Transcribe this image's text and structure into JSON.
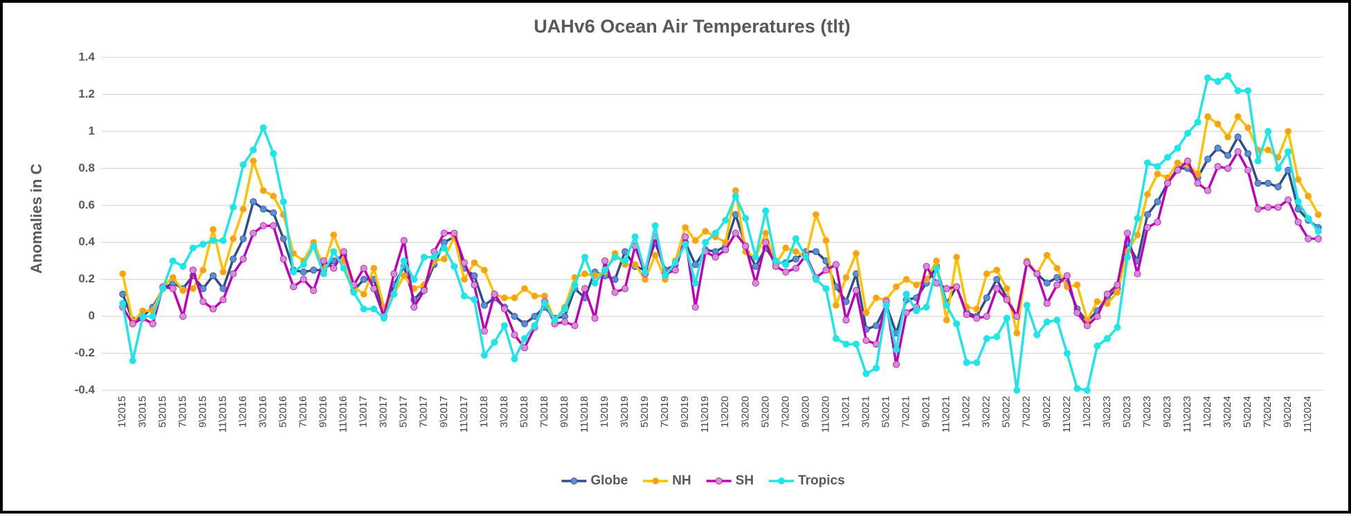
{
  "chart_data": {
    "type": "line",
    "title": "UAHv6 Ocean Air Temperatures (tlt)",
    "y_label": "Anomalies in C",
    "categories": [
      "1\\2015",
      null,
      "3\\2015",
      null,
      "5\\2015",
      null,
      "7\\2015",
      null,
      "9\\2015",
      null,
      "11\\2015",
      null,
      "1\\2016",
      null,
      "3\\2016",
      null,
      "5\\2016",
      null,
      "7\\2016",
      null,
      "9\\2016",
      null,
      "11\\2016",
      null,
      "1\\2017",
      null,
      "3\\2017",
      null,
      "5\\2017",
      null,
      "7\\2017",
      null,
      "9\\2017",
      null,
      "11\\2017",
      null,
      "1\\2018",
      null,
      "3\\2018",
      null,
      "5\\2018",
      null,
      "7\\2018",
      null,
      "9\\2018",
      null,
      "11\\2018",
      null,
      "1\\2019",
      null,
      "3\\2019",
      null,
      "5\\2019",
      null,
      "7\\2019",
      null,
      "9\\2019",
      null,
      "11\\2019",
      null,
      "1\\2020",
      null,
      "3\\2020",
      null,
      "5\\2020",
      null,
      "7\\2020",
      null,
      "9\\2020",
      null,
      "11\\2020",
      null,
      "1\\2021",
      null,
      "3\\2021",
      null,
      "5\\2021",
      null,
      "7\\2021",
      null,
      "9\\2021",
      null,
      "11\\2021",
      null,
      "1\\2022",
      null,
      "3\\2022",
      null,
      "5\\2022",
      null,
      "7\\2022",
      null,
      "9\\2022",
      null,
      "11\\2022",
      null,
      "1\\2023",
      null,
      "3\\2023",
      null,
      "5\\2023",
      null,
      "7\\2023",
      null,
      "9\\2023",
      null,
      "11\\2023",
      null,
      "1\\2024",
      null,
      "3\\2024",
      null,
      "5\\2024",
      null,
      "7\\2024",
      null,
      "9\\2024",
      null,
      "11\\2024",
      null
    ],
    "series": [
      {
        "name": "Globe",
        "color": "#2e4d8a",
        "marker_color": "#5b8fd5",
        "values": [
          0.12,
          -0.02,
          0.0,
          0.05,
          0.15,
          0.18,
          0.15,
          0.22,
          0.15,
          0.22,
          0.15,
          0.31,
          0.42,
          0.62,
          0.58,
          0.56,
          0.42,
          0.25,
          0.24,
          0.25,
          0.25,
          0.3,
          0.33,
          0.14,
          0.2,
          0.2,
          0.03,
          0.17,
          0.27,
          0.09,
          0.15,
          0.28,
          0.4,
          0.43,
          0.26,
          0.22,
          0.06,
          0.1,
          0.05,
          0.0,
          -0.04,
          0.0,
          0.05,
          -0.01,
          0.0,
          0.15,
          0.1,
          0.24,
          0.22,
          0.2,
          0.35,
          0.27,
          0.25,
          0.4,
          0.25,
          0.28,
          0.4,
          0.28,
          0.36,
          0.35,
          0.38,
          0.55,
          0.38,
          0.27,
          0.37,
          0.29,
          0.29,
          0.31,
          0.35,
          0.35,
          0.3,
          0.16,
          0.08,
          0.23,
          -0.07,
          -0.05,
          0.06,
          -0.09,
          0.09,
          0.1,
          0.18,
          0.27,
          0.07,
          0.16,
          0.02,
          0.0,
          0.1,
          0.2,
          0.1,
          0.0,
          0.29,
          0.23,
          0.18,
          0.21,
          0.18,
          0.04,
          -0.03,
          0.03,
          0.1,
          0.15,
          0.4,
          0.3,
          0.55,
          0.62,
          0.72,
          0.8,
          0.8,
          0.75,
          0.85,
          0.91,
          0.87,
          0.97,
          0.88,
          0.72,
          0.72,
          0.7,
          0.79,
          0.58,
          0.52,
          0.48
        ]
      },
      {
        "name": "NH",
        "color": "#ffc000",
        "marker_color": "#f4a020",
        "values": [
          0.23,
          -0.03,
          0.03,
          0.03,
          0.16,
          0.21,
          0.14,
          0.15,
          0.25,
          0.47,
          0.24,
          0.42,
          0.58,
          0.84,
          0.68,
          0.65,
          0.55,
          0.34,
          0.3,
          0.4,
          0.27,
          0.44,
          0.3,
          0.16,
          0.12,
          0.26,
          0.05,
          0.12,
          0.22,
          0.15,
          0.17,
          0.3,
          0.31,
          0.43,
          0.2,
          0.29,
          0.25,
          0.12,
          0.1,
          0.1,
          0.15,
          0.11,
          0.11,
          -0.02,
          0.05,
          0.21,
          0.23,
          0.22,
          0.24,
          0.34,
          0.28,
          0.28,
          0.2,
          0.33,
          0.2,
          0.3,
          0.48,
          0.41,
          0.46,
          0.43,
          0.4,
          0.68,
          0.35,
          0.32,
          0.45,
          0.28,
          0.37,
          0.35,
          0.32,
          0.55,
          0.41,
          0.06,
          0.21,
          0.34,
          0.02,
          0.1,
          0.09,
          0.16,
          0.2,
          0.17,
          0.2,
          0.3,
          -0.02,
          0.32,
          0.05,
          0.04,
          0.23,
          0.25,
          0.15,
          -0.09,
          0.3,
          0.23,
          0.33,
          0.26,
          0.16,
          0.17,
          -0.02,
          0.08,
          0.07,
          0.13,
          0.35,
          0.44,
          0.66,
          0.77,
          0.75,
          0.83,
          0.82,
          0.77,
          1.08,
          1.04,
          0.97,
          1.08,
          1.02,
          0.9,
          0.9,
          0.86,
          1.0,
          0.74,
          0.65,
          0.55
        ]
      },
      {
        "name": "SH",
        "color": "#c000b8",
        "marker_color": "#d38fd3",
        "values": [
          0.05,
          -0.04,
          -0.01,
          -0.04,
          0.16,
          0.15,
          0.0,
          0.25,
          0.08,
          0.04,
          0.09,
          0.23,
          0.31,
          0.45,
          0.49,
          0.49,
          0.31,
          0.16,
          0.2,
          0.14,
          0.3,
          0.26,
          0.35,
          0.17,
          0.26,
          0.15,
          0.0,
          0.23,
          0.41,
          0.05,
          0.14,
          0.35,
          0.45,
          0.45,
          0.29,
          0.17,
          -0.08,
          0.12,
          0.04,
          -0.1,
          -0.17,
          -0.06,
          0.08,
          -0.04,
          -0.03,
          -0.05,
          0.15,
          -0.01,
          0.3,
          0.13,
          0.15,
          0.38,
          0.23,
          0.43,
          0.23,
          0.25,
          0.43,
          0.05,
          0.35,
          0.32,
          0.36,
          0.45,
          0.38,
          0.18,
          0.4,
          0.27,
          0.24,
          0.26,
          0.33,
          0.21,
          0.25,
          0.28,
          -0.02,
          0.14,
          -0.13,
          -0.15,
          0.08,
          -0.26,
          0.02,
          0.05,
          0.27,
          0.18,
          0.15,
          0.16,
          0.01,
          -0.01,
          0.0,
          0.15,
          0.09,
          0.0,
          0.29,
          0.23,
          0.07,
          0.17,
          0.22,
          0.02,
          -0.05,
          0.0,
          0.12,
          0.17,
          0.45,
          0.23,
          0.48,
          0.51,
          0.72,
          0.79,
          0.84,
          0.72,
          0.68,
          0.81,
          0.8,
          0.89,
          0.79,
          0.58,
          0.59,
          0.59,
          0.63,
          0.51,
          0.42,
          0.42
        ]
      },
      {
        "name": "Tropics",
        "color": "#1ee6e6",
        "marker_color": "#1ee6e6",
        "values": [
          0.07,
          -0.24,
          0.0,
          0.0,
          0.15,
          0.3,
          0.27,
          0.37,
          0.39,
          0.41,
          0.41,
          0.59,
          0.82,
          0.9,
          1.02,
          0.88,
          0.62,
          0.24,
          0.28,
          0.38,
          0.23,
          0.35,
          0.26,
          0.13,
          0.04,
          0.04,
          -0.01,
          0.12,
          0.3,
          0.2,
          0.32,
          0.32,
          0.37,
          0.27,
          0.11,
          0.09,
          -0.21,
          -0.14,
          -0.05,
          -0.23,
          -0.12,
          -0.05,
          0.07,
          -0.02,
          0.04,
          0.17,
          0.32,
          0.18,
          0.25,
          0.32,
          0.3,
          0.43,
          0.24,
          0.49,
          0.22,
          0.29,
          0.39,
          0.18,
          0.4,
          0.45,
          0.52,
          0.65,
          0.53,
          0.32,
          0.57,
          0.3,
          0.28,
          0.42,
          0.32,
          0.2,
          0.15,
          -0.12,
          -0.15,
          -0.15,
          -0.31,
          -0.28,
          0.06,
          -0.18,
          0.12,
          0.03,
          0.05,
          0.26,
          0.06,
          -0.04,
          -0.25,
          -0.25,
          -0.12,
          -0.11,
          -0.01,
          -0.4,
          0.06,
          -0.1,
          -0.03,
          -0.02,
          -0.2,
          -0.39,
          -0.4,
          -0.16,
          -0.12,
          -0.06,
          0.32,
          0.53,
          0.83,
          0.81,
          0.86,
          0.91,
          0.99,
          1.05,
          1.29,
          1.27,
          1.3,
          1.22,
          1.22,
          0.84,
          1.0,
          0.8,
          0.89,
          0.62,
          0.53,
          0.46
        ]
      }
    ],
    "ylim": [
      -0.4,
      1.4
    ],
    "yticks": [
      -0.4,
      -0.2,
      0,
      0.2,
      0.4,
      0.6,
      0.8,
      1,
      1.2,
      1.4
    ],
    "grid": true,
    "legend": "bottom"
  }
}
